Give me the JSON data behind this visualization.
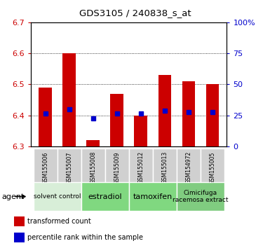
{
  "title": "GDS3105 / 240838_s_at",
  "samples": [
    "GSM155006",
    "GSM155007",
    "GSM155008",
    "GSM155009",
    "GSM155012",
    "GSM155013",
    "GSM154972",
    "GSM155005"
  ],
  "bar_values": [
    6.49,
    6.6,
    6.32,
    6.47,
    6.4,
    6.53,
    6.51,
    6.5
  ],
  "blue_values": [
    6.405,
    6.42,
    6.39,
    6.405,
    6.405,
    6.415,
    6.41,
    6.41
  ],
  "bar_base": 6.3,
  "ylim": [
    6.3,
    6.7
  ],
  "y2lim": [
    0,
    100
  ],
  "yticks": [
    6.3,
    6.4,
    6.5,
    6.6,
    6.7
  ],
  "y2ticks": [
    0,
    25,
    50,
    75,
    100
  ],
  "bar_color": "#cc0000",
  "blue_color": "#0000cc",
  "agent_groups": [
    {
      "label": "solvent control",
      "indices": [
        0,
        1
      ],
      "color": "#d8eed8",
      "fontsize": 6.5
    },
    {
      "label": "estradiol",
      "indices": [
        2,
        3
      ],
      "color": "#80d880",
      "fontsize": 8
    },
    {
      "label": "tamoxifen",
      "indices": [
        4,
        5
      ],
      "color": "#80d880",
      "fontsize": 8
    },
    {
      "label": "Cimicifuga\nracemosa extract",
      "indices": [
        6,
        7
      ],
      "color": "#80cc80",
      "fontsize": 6.5
    }
  ],
  "bar_width": 0.55,
  "bg_color": "#ffffff",
  "plot_bg": "#ffffff",
  "grid_color": "#000000",
  "tick_label_color_left": "#cc0000",
  "tick_label_color_right": "#0000cc",
  "legend_red_label": "transformed count",
  "legend_blue_label": "percentile rank within the sample",
  "sample_bg_color": "#d0d0d0",
  "sample_border_color": "#aaaaaa"
}
